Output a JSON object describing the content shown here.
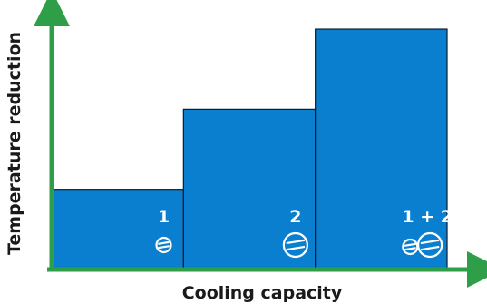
{
  "chart_data": {
    "type": "bar",
    "title": "",
    "xlabel": "Cooling capacity",
    "ylabel": "Temperature reduction",
    "categories": [
      "1",
      "2",
      "1 + 2"
    ],
    "values": [
      32,
      64,
      96
    ],
    "ylim": [
      0,
      100
    ],
    "grid": false,
    "legend": "none",
    "compressor_icons": [
      [
        "small"
      ],
      [
        "large"
      ],
      [
        "small",
        "large"
      ]
    ]
  },
  "colors": {
    "bar_fill": "#0a7fd0",
    "bar_stroke": "#0d1b2a",
    "axis": "#2e9e48",
    "icon": "#ffffff"
  }
}
